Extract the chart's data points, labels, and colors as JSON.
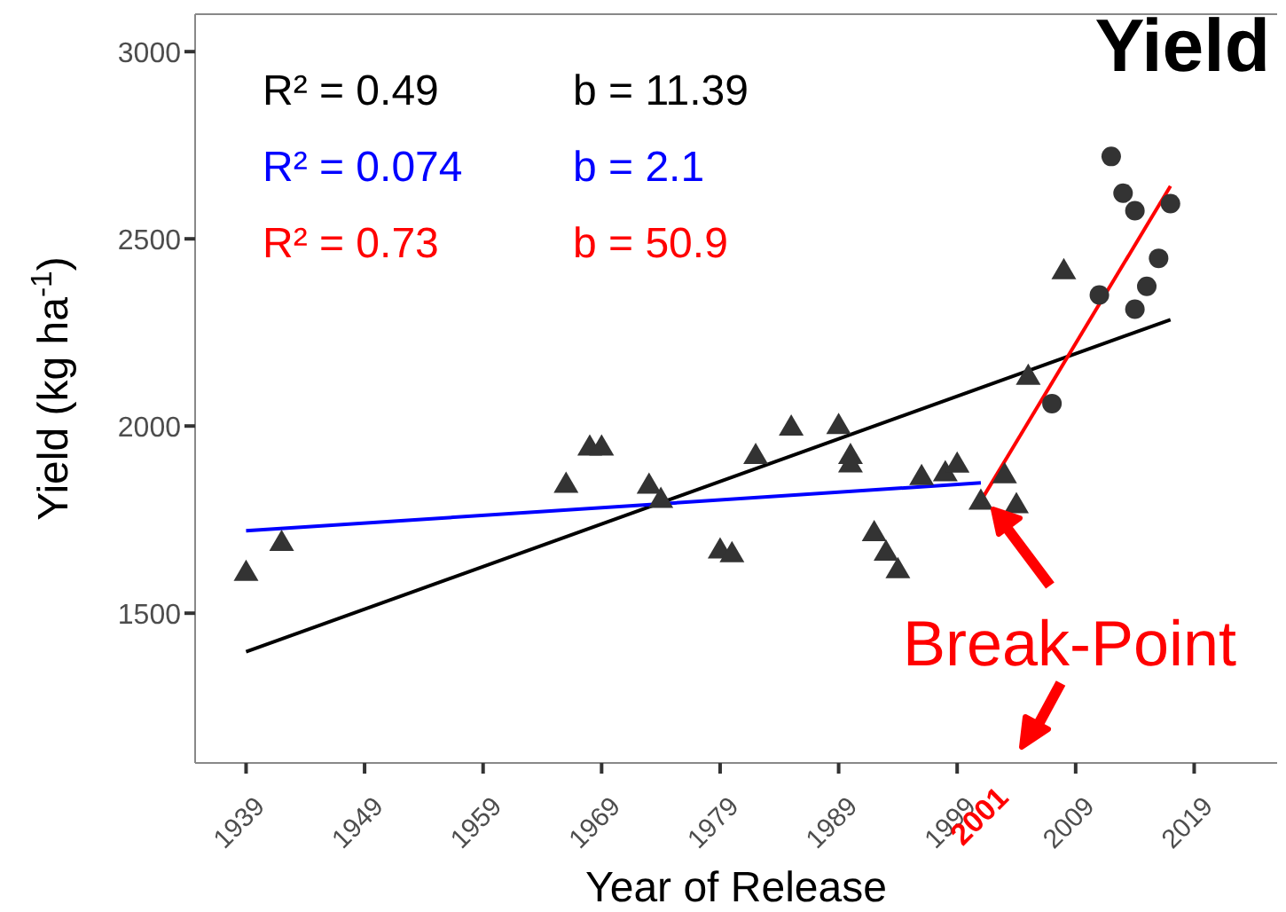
{
  "chart_data": {
    "type": "scatter",
    "title": "Yield",
    "xlabel": "Year of Release",
    "ylabel": "Yield (kg ha$^{-1}$)",
    "xlim": [
      1934.7,
      2026
    ],
    "xticks": [
      1939,
      1949,
      1959,
      1969,
      1979,
      1989,
      1999,
      2009,
      2019
    ],
    "ylim": [
      1100,
      3100
    ],
    "yticks": [
      1500,
      2000,
      2500,
      3000
    ],
    "grid": false,
    "series": [
      {
        "marker": "triangle",
        "color": "#333333",
        "x": [
          1939,
          1942,
          1966,
          1968,
          1969,
          1973,
          1974,
          1979,
          1980,
          1982,
          1985,
          1989,
          1990,
          1990,
          1992,
          1993,
          1994,
          1996,
          1998,
          1999,
          2001,
          2003,
          2004,
          2005,
          2008
        ],
        "values": [
          1610,
          1690,
          1845,
          1945,
          1945,
          1843,
          1805,
          1670,
          1660,
          1922,
          1998,
          2002,
          1922,
          1900,
          1716,
          1664,
          1617,
          1866,
          1876,
          1899,
          1800,
          1871,
          1791,
          2134,
          2416
        ]
      },
      {
        "marker": "circle",
        "color": "#333333",
        "x": [
          2007,
          2011,
          2012,
          2013,
          2014,
          2014,
          2015,
          2016,
          2017
        ],
        "values": [
          2060,
          2350,
          2720,
          2622,
          2575,
          2312,
          2373,
          2448,
          2594
        ]
      },
      {
        "type": "line",
        "marker": "none",
        "color": "#000000",
        "x": [
          1939,
          2017
        ],
        "values": [
          1397,
          2284
        ]
      },
      {
        "type": "line",
        "marker": "none",
        "color": "#0000ff",
        "x": [
          1939,
          2001
        ],
        "values": [
          1720,
          1848
        ]
      },
      {
        "type": "line",
        "marker": "none",
        "color": "#ff0000",
        "x": [
          2001,
          2017
        ],
        "values": [
          1800,
          2641
        ]
      }
    ],
    "annotations": [
      "R² = 0.49",
      "b =  11.39",
      "R² = 0.074",
      "b =  2.1",
      "R² = 0.73",
      "b =  50.9",
      "Break-Point",
      "2001"
    ]
  }
}
